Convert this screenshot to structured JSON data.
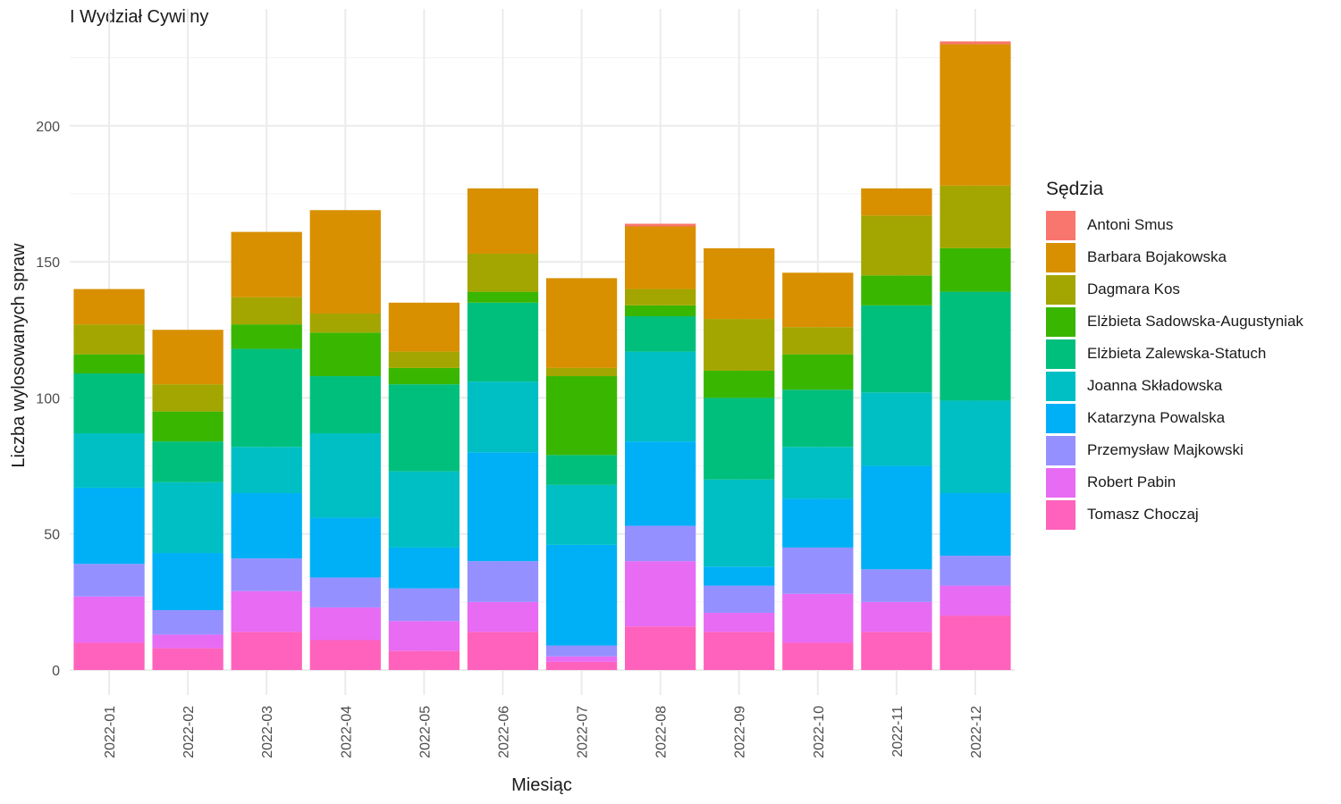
{
  "chart_data": {
    "type": "bar",
    "stacked": true,
    "title": "I Wydział Cywilny",
    "xlabel": "Miesiąc",
    "ylabel": "Liczba wylosowanych spraw",
    "ylim": [
      0,
      232
    ],
    "yticks": [
      0,
      50,
      100,
      150,
      200
    ],
    "ytick_labels": [
      "0",
      "50",
      "100",
      "150",
      "200"
    ],
    "grid": true,
    "legend_title": "Sędzia",
    "legend_position": "right",
    "categories": [
      "2022-01",
      "2022-02",
      "2022-03",
      "2022-04",
      "2022-05",
      "2022-06",
      "2022-07",
      "2022-08",
      "2022-09",
      "2022-10",
      "2022-11",
      "2022-12"
    ],
    "series": [
      {
        "name": "Antoni Smus",
        "color": "#F8766D",
        "values": [
          0,
          0,
          0,
          0,
          0,
          0,
          0,
          1,
          0,
          0,
          0,
          1
        ]
      },
      {
        "name": "Barbara Bojakowska",
        "color": "#D89000",
        "values": [
          13,
          20,
          24,
          38,
          18,
          24,
          33,
          23,
          26,
          20,
          10,
          52
        ]
      },
      {
        "name": "Dagmara Kos",
        "color": "#A3A500",
        "values": [
          11,
          10,
          10,
          7,
          6,
          14,
          3,
          6,
          19,
          10,
          22,
          23
        ]
      },
      {
        "name": "Elżbieta Sadowska-Augustyniak",
        "color": "#39B600",
        "values": [
          7,
          11,
          9,
          16,
          6,
          4,
          29,
          4,
          10,
          13,
          11,
          16
        ]
      },
      {
        "name": "Elżbieta Zalewska-Statuch",
        "color": "#00BF7D",
        "values": [
          22,
          15,
          36,
          21,
          32,
          29,
          11,
          13,
          30,
          21,
          32,
          40
        ]
      },
      {
        "name": "Joanna Składowska",
        "color": "#00BFC4",
        "values": [
          20,
          26,
          17,
          31,
          28,
          26,
          22,
          33,
          32,
          19,
          27,
          34
        ]
      },
      {
        "name": "Katarzyna Powalska",
        "color": "#00B0F6",
        "values": [
          28,
          21,
          24,
          22,
          15,
          40,
          37,
          31,
          7,
          18,
          38,
          23
        ]
      },
      {
        "name": "Przemysław Majkowski",
        "color": "#9590FF",
        "values": [
          12,
          9,
          12,
          11,
          12,
          15,
          4,
          13,
          10,
          17,
          12,
          11
        ]
      },
      {
        "name": "Robert Pabin",
        "color": "#E76BF3",
        "values": [
          17,
          5,
          15,
          12,
          11,
          11,
          2,
          24,
          7,
          18,
          11,
          11
        ]
      },
      {
        "name": "Tomasz Choczaj",
        "color": "#FF62BC",
        "values": [
          10,
          8,
          14,
          11,
          7,
          14,
          3,
          16,
          14,
          10,
          14,
          20
        ]
      }
    ]
  }
}
